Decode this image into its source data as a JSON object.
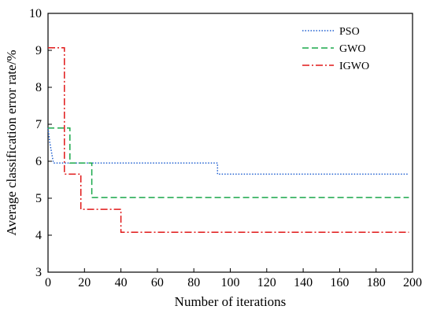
{
  "chart_data": {
    "type": "line",
    "title": "",
    "xlabel": "Number of iterations",
    "ylabel": "Average classification error rate/%",
    "xlim": [
      0,
      200
    ],
    "ylim": [
      3,
      10
    ],
    "x_ticks": [
      0,
      20,
      40,
      60,
      80,
      100,
      120,
      140,
      160,
      180,
      200
    ],
    "y_ticks": [
      3,
      4,
      5,
      6,
      7,
      8,
      9,
      10
    ],
    "grid": false,
    "legend_position": "top-right",
    "line_style": "step",
    "series": [
      {
        "name": "PSO",
        "color": "#1f5fd0",
        "dash": "dotted",
        "points": [
          [
            0,
            6.9
          ],
          [
            1,
            6.5
          ],
          [
            3,
            5.95
          ],
          [
            93,
            5.95
          ],
          [
            93,
            5.65
          ],
          [
            198,
            5.65
          ]
        ]
      },
      {
        "name": "GWO",
        "color": "#1aa84a",
        "dash": "dashed",
        "points": [
          [
            0,
            6.9
          ],
          [
            12,
            6.9
          ],
          [
            12,
            5.95
          ],
          [
            24,
            5.95
          ],
          [
            24,
            5.02
          ],
          [
            198,
            5.02
          ]
        ]
      },
      {
        "name": "IGWO",
        "color": "#e01818",
        "dash": "dashdot",
        "points": [
          [
            0,
            9.07
          ],
          [
            9,
            9.07
          ],
          [
            9,
            5.65
          ],
          [
            18,
            5.65
          ],
          [
            18,
            4.7
          ],
          [
            40,
            4.7
          ],
          [
            40,
            4.08
          ],
          [
            198,
            4.08
          ]
        ]
      }
    ]
  }
}
